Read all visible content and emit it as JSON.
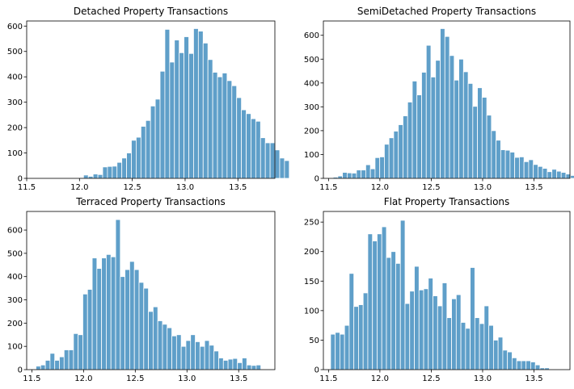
{
  "chart_data": [
    {
      "type": "bar",
      "title": "Detached Property Transactions",
      "xlabel": "",
      "ylabel": "",
      "xlim": [
        11.5,
        13.85
      ],
      "ylim": [
        0,
        620
      ],
      "bin_start": 11.54,
      "bin_width": 0.0453,
      "values": [
        0,
        0,
        0,
        0,
        0,
        0,
        0,
        0,
        0,
        0,
        3,
        13,
        8,
        17,
        15,
        45,
        47,
        48,
        63,
        80,
        100,
        150,
        162,
        205,
        228,
        285,
        312,
        422,
        587,
        458,
        545,
        495,
        558,
        492,
        590,
        580,
        533,
        468,
        418,
        400,
        415,
        385,
        365,
        318,
        270,
        255,
        235,
        225,
        160,
        140,
        140,
        112,
        80,
        70
      ],
      "x_ticks": [
        11.5,
        12.0,
        12.5,
        13.0,
        13.5
      ],
      "x_tick_labels": [
        "11.5",
        "12.0",
        "12.5",
        "13.0",
        "13.5"
      ],
      "y_ticks": [
        0,
        100,
        200,
        300,
        400,
        500,
        600
      ],
      "y_tick_labels": [
        "0",
        "100",
        "200",
        "300",
        "400",
        "500",
        "600"
      ]
    },
    {
      "type": "bar",
      "title": "SemiDetached Property Transactions",
      "xlabel": "",
      "ylabel": "",
      "xlim": [
        11.45,
        13.85
      ],
      "ylim": [
        0,
        660
      ],
      "bin_start": 11.5,
      "bin_width": 0.0453,
      "values": [
        2,
        5,
        10,
        25,
        23,
        22,
        35,
        35,
        57,
        40,
        87,
        90,
        143,
        170,
        198,
        225,
        262,
        320,
        408,
        350,
        445,
        558,
        425,
        495,
        628,
        595,
        515,
        412,
        500,
        447,
        398,
        302,
        380,
        340,
        265,
        200,
        160,
        120,
        118,
        110,
        88,
        90,
        70,
        78,
        58,
        50,
        42,
        28,
        38,
        30,
        25,
        18,
        12
      ],
      "x_ticks": [
        11.5,
        12.0,
        12.5,
        13.0,
        13.5
      ],
      "x_tick_labels": [
        "11.5",
        "12.0",
        "12.5",
        "13.0",
        "13.5"
      ],
      "y_ticks": [
        0,
        100,
        200,
        300,
        400,
        500,
        600
      ],
      "y_tick_labels": [
        "0",
        "100",
        "200",
        "300",
        "400",
        "500",
        "600"
      ]
    },
    {
      "type": "bar",
      "title": "Terraced Property Transactions",
      "xlabel": "",
      "ylabel": "",
      "xlim": [
        11.45,
        13.85
      ],
      "ylim": [
        0,
        680
      ],
      "bin_start": 11.54,
      "bin_width": 0.0453,
      "values": [
        15,
        20,
        40,
        70,
        40,
        55,
        85,
        85,
        155,
        150,
        325,
        345,
        480,
        435,
        480,
        495,
        485,
        645,
        400,
        430,
        465,
        430,
        375,
        350,
        250,
        270,
        210,
        195,
        180,
        145,
        150,
        100,
        125,
        150,
        120,
        100,
        125,
        105,
        80,
        50,
        40,
        45,
        48,
        30,
        50,
        20,
        18,
        20
      ],
      "x_ticks": [
        11.5,
        12.0,
        12.5,
        13.0,
        13.5
      ],
      "x_tick_labels": [
        "11.5",
        "12.0",
        "12.5",
        "13.0",
        "13.5"
      ],
      "y_ticks": [
        0,
        100,
        200,
        300,
        400,
        500,
        600
      ],
      "y_tick_labels": [
        "0",
        "100",
        "200",
        "300",
        "400",
        "500",
        "600"
      ]
    },
    {
      "type": "bar",
      "title": "Flat Property Transactions",
      "xlabel": "",
      "ylabel": "",
      "xlim": [
        11.45,
        13.85
      ],
      "ylim": [
        0,
        268
      ],
      "bin_start": 11.52,
      "bin_width": 0.0453,
      "values": [
        60,
        63,
        60,
        75,
        163,
        107,
        110,
        130,
        230,
        218,
        230,
        242,
        190,
        200,
        180,
        253,
        112,
        133,
        175,
        135,
        137,
        155,
        125,
        108,
        147,
        88,
        120,
        127,
        80,
        70,
        173,
        88,
        78,
        108,
        75,
        50,
        55,
        33,
        30,
        20,
        15,
        15,
        15,
        13,
        8,
        3,
        3
      ],
      "x_ticks": [
        11.5,
        12.0,
        12.5,
        13.0,
        13.5
      ],
      "x_tick_labels": [
        "11.5",
        "12.0",
        "12.5",
        "13.0",
        "13.5"
      ],
      "y_ticks": [
        0,
        50,
        100,
        150,
        200,
        250
      ],
      "y_tick_labels": [
        "0",
        "50",
        "100",
        "150",
        "200",
        "250"
      ]
    }
  ],
  "style": {
    "bar_color": "#5f9fc9",
    "bar_edge": "#ffffff"
  }
}
